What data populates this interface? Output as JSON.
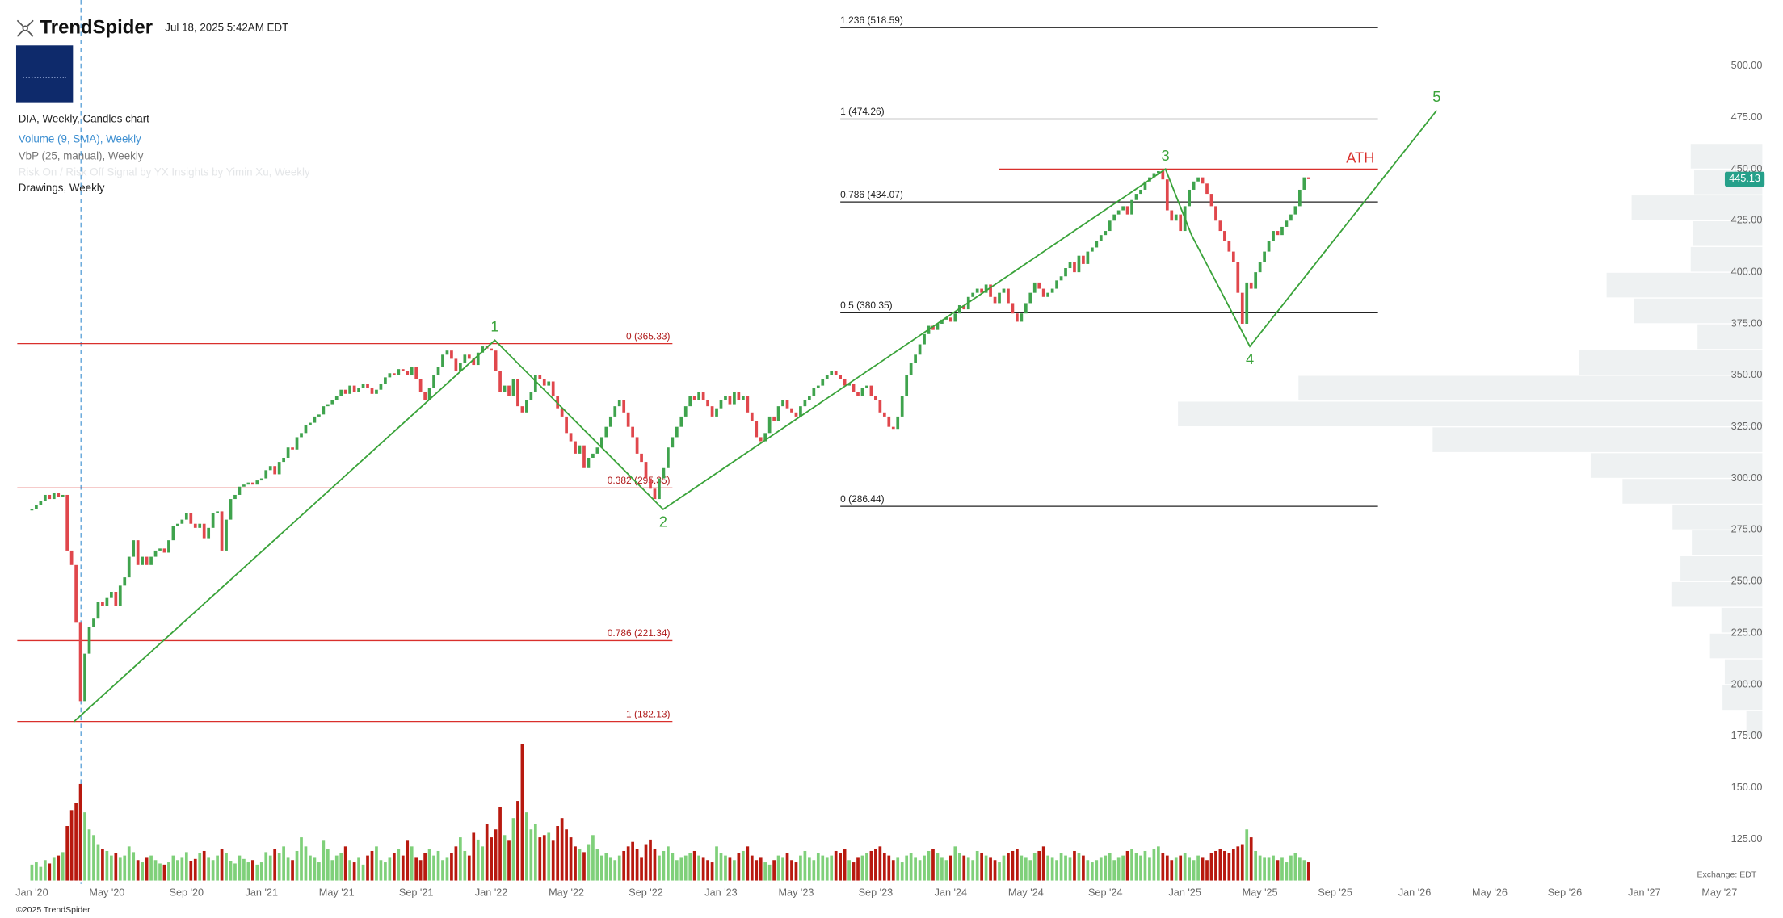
{
  "header": {
    "brand": "TrendSpider",
    "timestamp": "Jul 18, 2025 5:42AM EDT",
    "copyright": "©2025 TrendSpider",
    "exchange": "Exchange: EDT"
  },
  "legend": [
    "DIA, Weekly, Candles chart",
    "Volume (9, SMA), Weekly",
    "VbP (25, manual), Weekly",
    "Risk On / Risk Off Signal by YX Insights by Yimin Xu, Weekly",
    "Drawings, Weekly"
  ],
  "chart_data": {
    "type": "candlestick",
    "up_color": "#3fa34d",
    "down_color": "#e0474c",
    "volume_up_color": "#7fd07a",
    "volume_down_color": "#b8190f",
    "values": [
      285,
      287,
      289,
      292,
      290,
      293,
      291,
      292,
      265,
      258,
      230,
      192,
      215,
      228,
      232,
      240,
      238,
      242,
      245,
      238,
      248,
      252,
      262,
      270,
      258,
      262,
      258,
      262,
      265,
      266,
      264,
      270,
      277,
      278,
      280,
      283,
      278,
      276,
      278,
      271,
      276,
      283,
      284,
      265,
      280,
      290,
      292,
      296,
      297,
      298,
      297,
      299,
      300,
      304,
      306,
      302,
      308,
      310,
      315,
      314,
      320,
      322,
      326,
      327,
      330,
      331,
      335,
      336,
      338,
      340,
      343,
      341,
      345,
      342,
      344,
      346,
      344,
      341,
      343,
      346,
      349,
      351,
      350,
      353,
      352,
      350,
      354,
      348,
      342,
      338,
      344,
      350,
      354,
      360,
      362,
      358,
      352,
      356,
      360,
      358,
      355,
      361,
      364,
      363,
      362,
      352,
      342,
      345,
      340,
      348,
      335,
      332,
      338,
      342,
      350,
      348,
      345,
      347,
      340,
      334,
      330,
      322,
      318,
      312,
      316,
      305,
      310,
      312,
      315,
      320,
      325,
      330,
      335,
      338,
      332,
      325,
      320,
      312,
      308,
      300,
      295,
      290,
      300,
      305,
      315,
      320,
      325,
      330,
      335,
      340,
      338,
      342,
      338,
      335,
      330,
      334,
      338,
      340,
      336,
      342,
      338,
      340,
      332,
      328,
      320,
      318,
      322,
      330,
      328,
      335,
      338,
      334,
      332,
      330,
      335,
      338,
      340,
      344,
      345,
      348,
      350,
      352,
      350,
      348,
      345,
      346,
      342,
      340,
      344,
      345,
      340,
      338,
      332,
      330,
      325,
      324,
      330,
      340,
      350,
      356,
      360,
      365,
      370,
      374,
      372,
      375,
      377,
      378,
      376,
      380,
      384,
      382,
      388,
      390,
      392,
      390,
      394,
      388,
      385,
      390,
      392,
      385,
      380,
      376,
      380,
      385,
      390,
      395,
      392,
      388,
      390,
      392,
      396,
      398,
      402,
      405,
      400,
      408,
      404,
      410,
      412,
      415,
      418,
      420,
      425,
      428,
      430,
      432,
      428,
      435,
      438,
      440,
      444,
      446,
      448,
      449,
      445,
      430,
      425,
      428,
      420,
      432,
      440,
      444,
      446,
      443,
      438,
      432,
      425,
      420,
      415,
      410,
      405,
      390,
      375,
      395,
      392,
      400,
      405,
      410,
      415,
      420,
      418,
      422,
      425,
      428,
      432,
      440,
      446,
      445.13
    ],
    "volume": [
      14,
      16,
      12,
      18,
      15,
      20,
      22,
      25,
      48,
      62,
      68,
      85,
      60,
      45,
      40,
      32,
      28,
      26,
      22,
      24,
      20,
      22,
      30,
      25,
      18,
      16,
      20,
      22,
      18,
      15,
      14,
      16,
      22,
      18,
      20,
      25,
      17,
      19,
      24,
      26,
      20,
      18,
      22,
      28,
      24,
      17,
      15,
      22,
      19,
      16,
      18,
      14,
      16,
      25,
      22,
      28,
      24,
      30,
      20,
      18,
      26,
      38,
      30,
      22,
      20,
      16,
      35,
      28,
      18,
      22,
      24,
      30,
      18,
      16,
      20,
      14,
      22,
      26,
      30,
      18,
      16,
      20,
      24,
      28,
      22,
      35,
      30,
      20,
      18,
      24,
      28,
      22,
      26,
      18,
      20,
      24,
      30,
      38,
      26,
      22,
      42,
      36,
      30,
      50,
      38,
      45,
      65,
      40,
      35,
      55,
      70,
      120,
      60,
      45,
      50,
      38,
      40,
      42,
      35,
      48,
      55,
      45,
      38,
      30,
      28,
      25,
      32,
      40,
      28,
      22,
      24,
      20,
      18,
      22,
      26,
      30,
      34,
      28,
      20,
      32,
      36,
      28,
      22,
      26,
      30,
      24,
      18,
      20,
      22,
      24,
      26,
      22,
      20,
      18,
      16,
      30,
      24,
      22,
      20,
      18,
      24,
      26,
      30,
      22,
      18,
      20,
      16,
      14,
      18,
      22,
      20,
      24,
      18,
      16,
      22,
      26,
      20,
      18,
      24,
      22,
      20,
      22,
      26,
      24,
      28,
      18,
      16,
      20,
      22,
      24,
      26,
      28,
      30,
      24,
      22,
      18,
      20,
      16,
      22,
      24,
      20,
      18,
      22,
      26,
      28,
      24,
      20,
      18,
      22,
      30,
      24,
      22,
      20,
      18,
      26,
      24,
      22,
      20,
      18,
      16,
      22,
      24,
      26,
      28,
      22,
      20,
      18,
      24,
      26,
      30,
      22,
      20,
      18,
      24,
      22,
      20,
      26,
      24,
      22,
      18,
      16,
      18,
      20,
      22,
      24,
      18,
      20,
      22,
      26,
      28,
      24,
      22,
      26,
      20,
      28,
      30,
      24,
      22,
      18,
      20,
      22,
      24,
      20,
      18,
      22,
      20,
      18,
      24,
      26,
      28,
      26,
      24,
      28,
      30,
      32,
      45,
      38,
      26,
      22,
      20,
      20,
      22,
      18,
      20,
      16,
      22,
      24,
      20,
      18,
      16
    ],
    "xlim": [
      -3.3,
      391.7
    ],
    "xticks": [
      {
        "value": 0,
        "label": "Jan '20"
      },
      {
        "value": 17,
        "label": "May '20"
      },
      {
        "value": 35,
        "label": "Sep '20"
      },
      {
        "value": 52,
        "label": "Jan '21"
      },
      {
        "value": 69,
        "label": "May '21"
      },
      {
        "value": 87,
        "label": "Sep '21"
      },
      {
        "value": 104,
        "label": "Jan '22"
      },
      {
        "value": 121,
        "label": "May '22"
      },
      {
        "value": 139,
        "label": "Sep '22"
      },
      {
        "value": 156,
        "label": "Jan '23"
      },
      {
        "value": 173,
        "label": "May '23"
      },
      {
        "value": 191,
        "label": "Sep '23"
      },
      {
        "value": 208,
        "label": "Jan '24"
      },
      {
        "value": 225,
        "label": "May '24"
      },
      {
        "value": 243,
        "label": "Sep '24"
      },
      {
        "value": 261,
        "label": "Jan '25"
      },
      {
        "value": 278,
        "label": "May '25"
      },
      {
        "value": 295,
        "label": "Sep '25"
      },
      {
        "value": 313,
        "label": "Jan '26"
      },
      {
        "value": 330,
        "label": "May '26"
      },
      {
        "value": 347,
        "label": "Sep '26"
      },
      {
        "value": 365,
        "label": "Jan '27"
      },
      {
        "value": 382,
        "label": "May '27"
      }
    ],
    "ylim": [
      105,
      532
    ],
    "yticks": [
      {
        "value": 125,
        "label": "125.00"
      },
      {
        "value": 150,
        "label": "150.00"
      },
      {
        "value": 175,
        "label": "175.00"
      },
      {
        "value": 200,
        "label": "200.00"
      },
      {
        "value": 225,
        "label": "225.00"
      },
      {
        "value": 250,
        "label": "250.00"
      },
      {
        "value": 275,
        "label": "275.00"
      },
      {
        "value": 300,
        "label": "300.00"
      },
      {
        "value": 325,
        "label": "325.00"
      },
      {
        "value": 350,
        "label": "350.00"
      },
      {
        "value": 375,
        "label": "375.00"
      },
      {
        "value": 400,
        "label": "400.00"
      },
      {
        "value": 425,
        "label": "425.00"
      },
      {
        "value": 450,
        "label": "450.00"
      },
      {
        "value": 475,
        "label": "475.00"
      },
      {
        "value": 500,
        "label": "500.00"
      }
    ],
    "vbp": {
      "color": "#eef1f2",
      "bins": [
        175,
        187.5,
        200,
        212.5,
        225,
        237.5,
        250,
        262.5,
        275,
        287.5,
        300,
        312.5,
        325,
        337.5,
        350,
        362.5,
        375,
        387.5,
        400,
        412.5,
        425,
        437.5,
        450,
        462.5
      ],
      "values": [
        14,
        35,
        33,
        46,
        36,
        80,
        72,
        62,
        79,
        123,
        151,
        290,
        514,
        408,
        161,
        57,
        113,
        137,
        63,
        61,
        115,
        60,
        63
      ]
    },
    "fibs": [
      {
        "color": "#d9302c",
        "label_color": "#b01c1c",
        "label_align": "end",
        "start": -3.3,
        "end": 145,
        "levels": [
          {
            "value": 365.33,
            "label": "0 (365.33)"
          },
          {
            "value": 295.35,
            "label": "0.382 (295.35)"
          },
          {
            "value": 221.34,
            "label": "0.786 (221.34)"
          },
          {
            "value": 182.13,
            "label": "1 (182.13)"
          }
        ]
      },
      {
        "color": "#222222",
        "label_color": "#222222",
        "label_align": "start",
        "start": 183,
        "end": 304.7,
        "levels": [
          {
            "value": 518.59,
            "label": "1.236 (518.59)"
          },
          {
            "value": 474.26,
            "label": "1 (474.26)"
          },
          {
            "value": 434.07,
            "label": "0.786 (434.07)"
          },
          {
            "value": 380.35,
            "label": "0.5 (380.35)"
          },
          {
            "value": 286.44,
            "label": "0 (286.44)"
          }
        ]
      }
    ],
    "ath": {
      "label": "ATH",
      "value": 450,
      "start": 219,
      "end": 304.7,
      "color": "#d9302c"
    },
    "waves": {
      "color": "#3aa33a",
      "points": [
        {
          "label": null,
          "x": 9.5,
          "y": 182
        },
        {
          "label": "1",
          "x": 104.8,
          "y": 367
        },
        {
          "label": "2",
          "x": 142.9,
          "y": 285
        },
        {
          "label": "3",
          "x": 256.6,
          "y": 450
        },
        {
          "label": null,
          "x": 262.5,
          "y": 418
        },
        {
          "label": "4",
          "x": 275.7,
          "y": 364
        },
        {
          "label": "5",
          "x": 318,
          "y": 478.5
        }
      ]
    }
  }
}
